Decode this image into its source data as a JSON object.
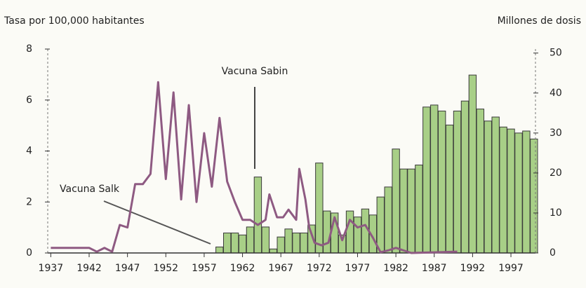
{
  "chart_data": {
    "type": "bar",
    "y_label": "Tasa por 100,000 habitantes",
    "y2_label": "Millones de dosis",
    "annotations": [
      "Vacuna Sabin",
      "Vacuna Salk"
    ],
    "xlim": [
      1936.6,
      2000.2
    ],
    "xticks": [
      1937,
      1942,
      1947,
      1952,
      1957,
      1962,
      1967,
      1972,
      1977,
      1982,
      1987,
      1992,
      1997
    ],
    "ylim": [
      0,
      8
    ],
    "yticks": [
      0,
      2,
      4,
      6,
      8
    ],
    "y2lim": [
      0,
      51
    ],
    "y2ticks": [
      0,
      10,
      20,
      30,
      40,
      50
    ],
    "series": [
      {
        "type": "bar",
        "axis": "y2",
        "color": "#a8cf87",
        "x": [
          1959,
          1960,
          1961,
          1962,
          1963,
          1964,
          1965,
          1966,
          1967,
          1968,
          1969,
          1970,
          1971,
          1972,
          1973,
          1974,
          1975,
          1976,
          1977,
          1978,
          1979,
          1980,
          1981,
          1982,
          1983,
          1984,
          1985,
          1986,
          1987,
          1988,
          1989,
          1990,
          1991,
          1992,
          1993,
          1994,
          1995,
          1996,
          1997,
          1998,
          1999,
          2000
        ],
        "values": [
          1.5,
          5,
          5,
          4.5,
          6.5,
          19,
          6.5,
          1,
          4,
          6,
          5,
          5,
          7,
          22.5,
          10.5,
          10,
          4.5,
          10.5,
          9,
          11,
          9.5,
          14,
          16.5,
          26,
          21,
          21,
          22,
          36.5,
          37,
          35.5,
          32,
          35.5,
          38,
          44.5,
          36,
          33,
          34,
          31.5,
          31,
          30,
          30.5,
          28.5
        ]
      },
      {
        "type": "line",
        "color": "#8e5a82",
        "x": [
          1937,
          1942,
          1943,
          1944,
          1945,
          1946,
          1947,
          1948,
          1949,
          1950,
          1951,
          1952,
          1953,
          1954,
          1955,
          1956,
          1957,
          1958,
          1959,
          1960,
          1961,
          1962,
          1963,
          1964,
          1965,
          1965.5,
          1966.5,
          1967.3,
          1968,
          1969,
          1969.4,
          1970.2,
          1970.7,
          1971.4,
          1972.3,
          1973.2,
          1974,
          1975,
          1976,
          1977,
          1978,
          1979,
          1980,
          1981,
          1982,
          1983,
          1984,
          1990
        ],
        "values": [
          0.2,
          0.2,
          0.05,
          0.2,
          0.05,
          1.1,
          1.0,
          2.7,
          2.7,
          3.1,
          6.7,
          2.9,
          6.3,
          2.1,
          5.8,
          2.0,
          4.7,
          2.6,
          5.3,
          2.8,
          2.0,
          1.3,
          1.3,
          1.1,
          1.3,
          2.3,
          1.4,
          1.4,
          1.7,
          1.3,
          3.3,
          2.1,
          1.0,
          0.4,
          0.3,
          0.4,
          1.4,
          0.5,
          1.3,
          1.0,
          1.1,
          0.6,
          0.03,
          0.1,
          0.2,
          0.1,
          0,
          0.05
        ]
      }
    ]
  }
}
